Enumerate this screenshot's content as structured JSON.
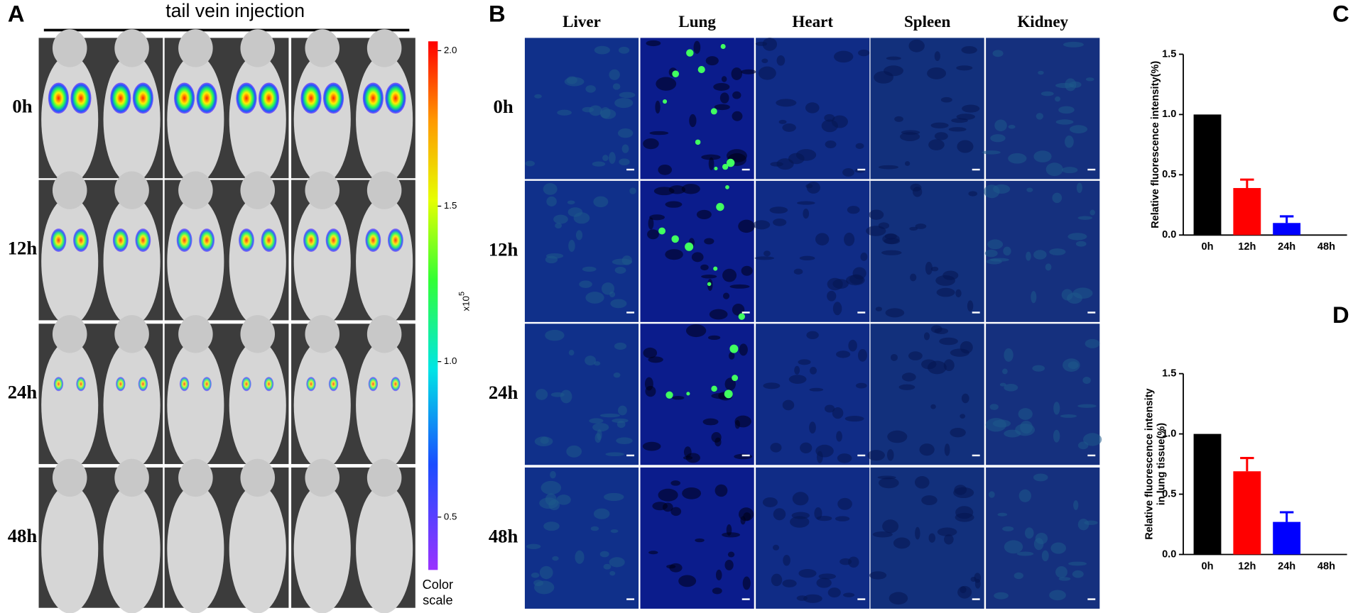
{
  "panel_a": {
    "label": "A",
    "title": "tail vein injection",
    "rows": [
      "0h",
      "12h",
      "24h",
      "48h"
    ],
    "colorbar": {
      "lim": [
        0.33,
        2.03
      ],
      "ticks": [
        {
          "value": 2,
          "label": "2.0"
        },
        1.5,
        {
          "value": 1,
          "label": "1.0"
        },
        0.5
      ],
      "unit": "x10",
      "unit_exponent": "5",
      "caption": [
        "Color",
        "scale"
      ]
    }
  },
  "panel_b": {
    "label": "B",
    "columns": [
      "Liver",
      "Lung",
      "Heart",
      "Spleen",
      "Kidney"
    ],
    "rows": [
      "0h",
      "12h",
      "24h",
      "48h"
    ]
  },
  "chart_data": [
    {
      "type": "bar",
      "panel_label": "C",
      "y_label": [
        "Relative fluorescence intensity(%)"
      ],
      "categories": [
        "0h",
        "12h",
        "24h",
        "48h"
      ],
      "values": [
        1.0,
        0.39,
        0.1,
        0
      ],
      "errors": [
        0,
        0.07,
        0.055,
        0
      ],
      "colors": [
        "#000000",
        "#ff0000",
        "#0000ff",
        "#000000"
      ],
      "ylim": [
        0,
        1.5
      ],
      "yticks": [
        {
          "value": 0,
          "label": "0.0"
        },
        0.5,
        {
          "value": 1,
          "label": "1.0"
        },
        1.5
      ]
    },
    {
      "type": "bar",
      "panel_label": "D",
      "y_label": [
        "Relative fluorescence intensity",
        "in lung tissue(%)"
      ],
      "categories": [
        "0h",
        "12h",
        "24h",
        "48h"
      ],
      "values": [
        1.0,
        0.69,
        0.27,
        0
      ],
      "errors": [
        0,
        0.11,
        0.08,
        0
      ],
      "colors": [
        "#000000",
        "#ff0000",
        "#0000ff",
        "#000000"
      ],
      "ylim": [
        0,
        1.5
      ],
      "yticks": [
        {
          "value": 0,
          "label": "0.0"
        },
        0.5,
        {
          "value": 1,
          "label": "1.0"
        },
        1.5
      ]
    }
  ]
}
